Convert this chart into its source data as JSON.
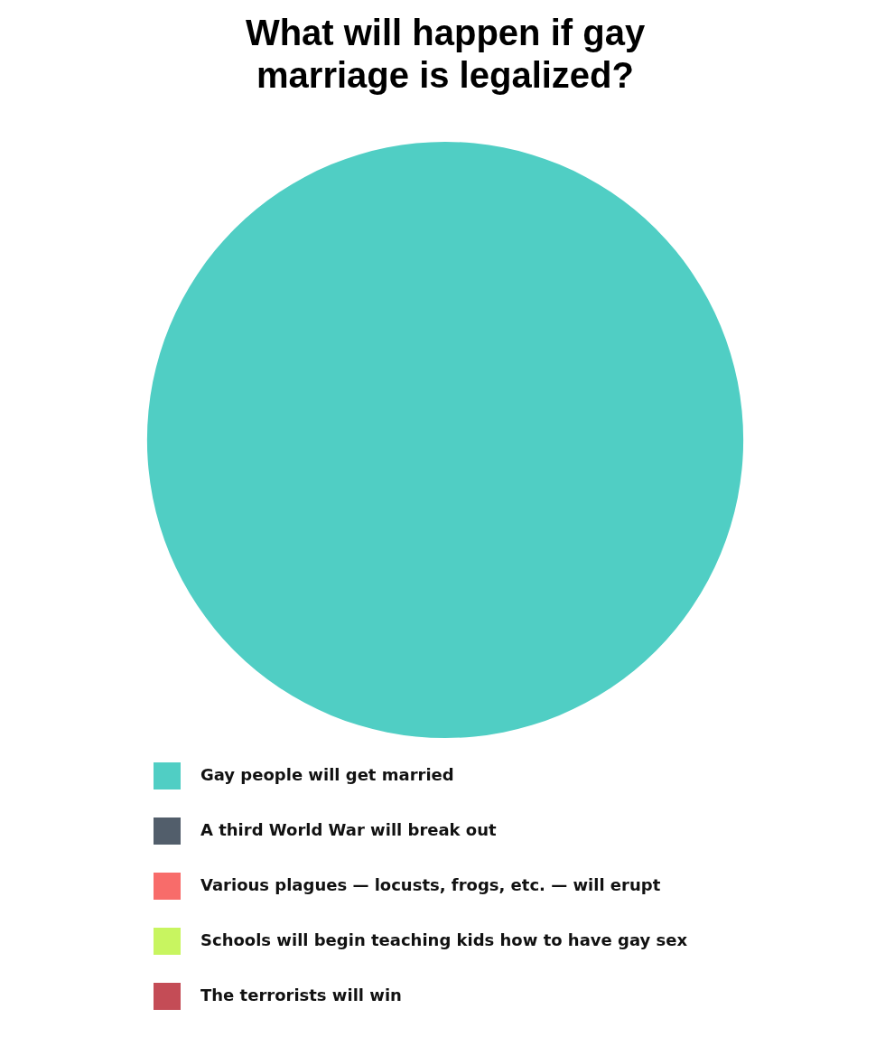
{
  "chart_data": {
    "type": "pie",
    "title": "What will happen if gay\nmarriage is legalized?",
    "categories": [
      "Gay people will get married",
      "A third World War will break out",
      "Various plagues — locusts, frogs, etc. — will erupt",
      "Schools will begin teaching kids how to have gay sex",
      "The terrorists will win"
    ],
    "values": [
      100,
      0,
      0,
      0,
      0
    ],
    "colors": [
      "#50cec4",
      "#525e6b",
      "#f86c6a",
      "#c8f560",
      "#c44c56"
    ],
    "legend": "bottom"
  }
}
